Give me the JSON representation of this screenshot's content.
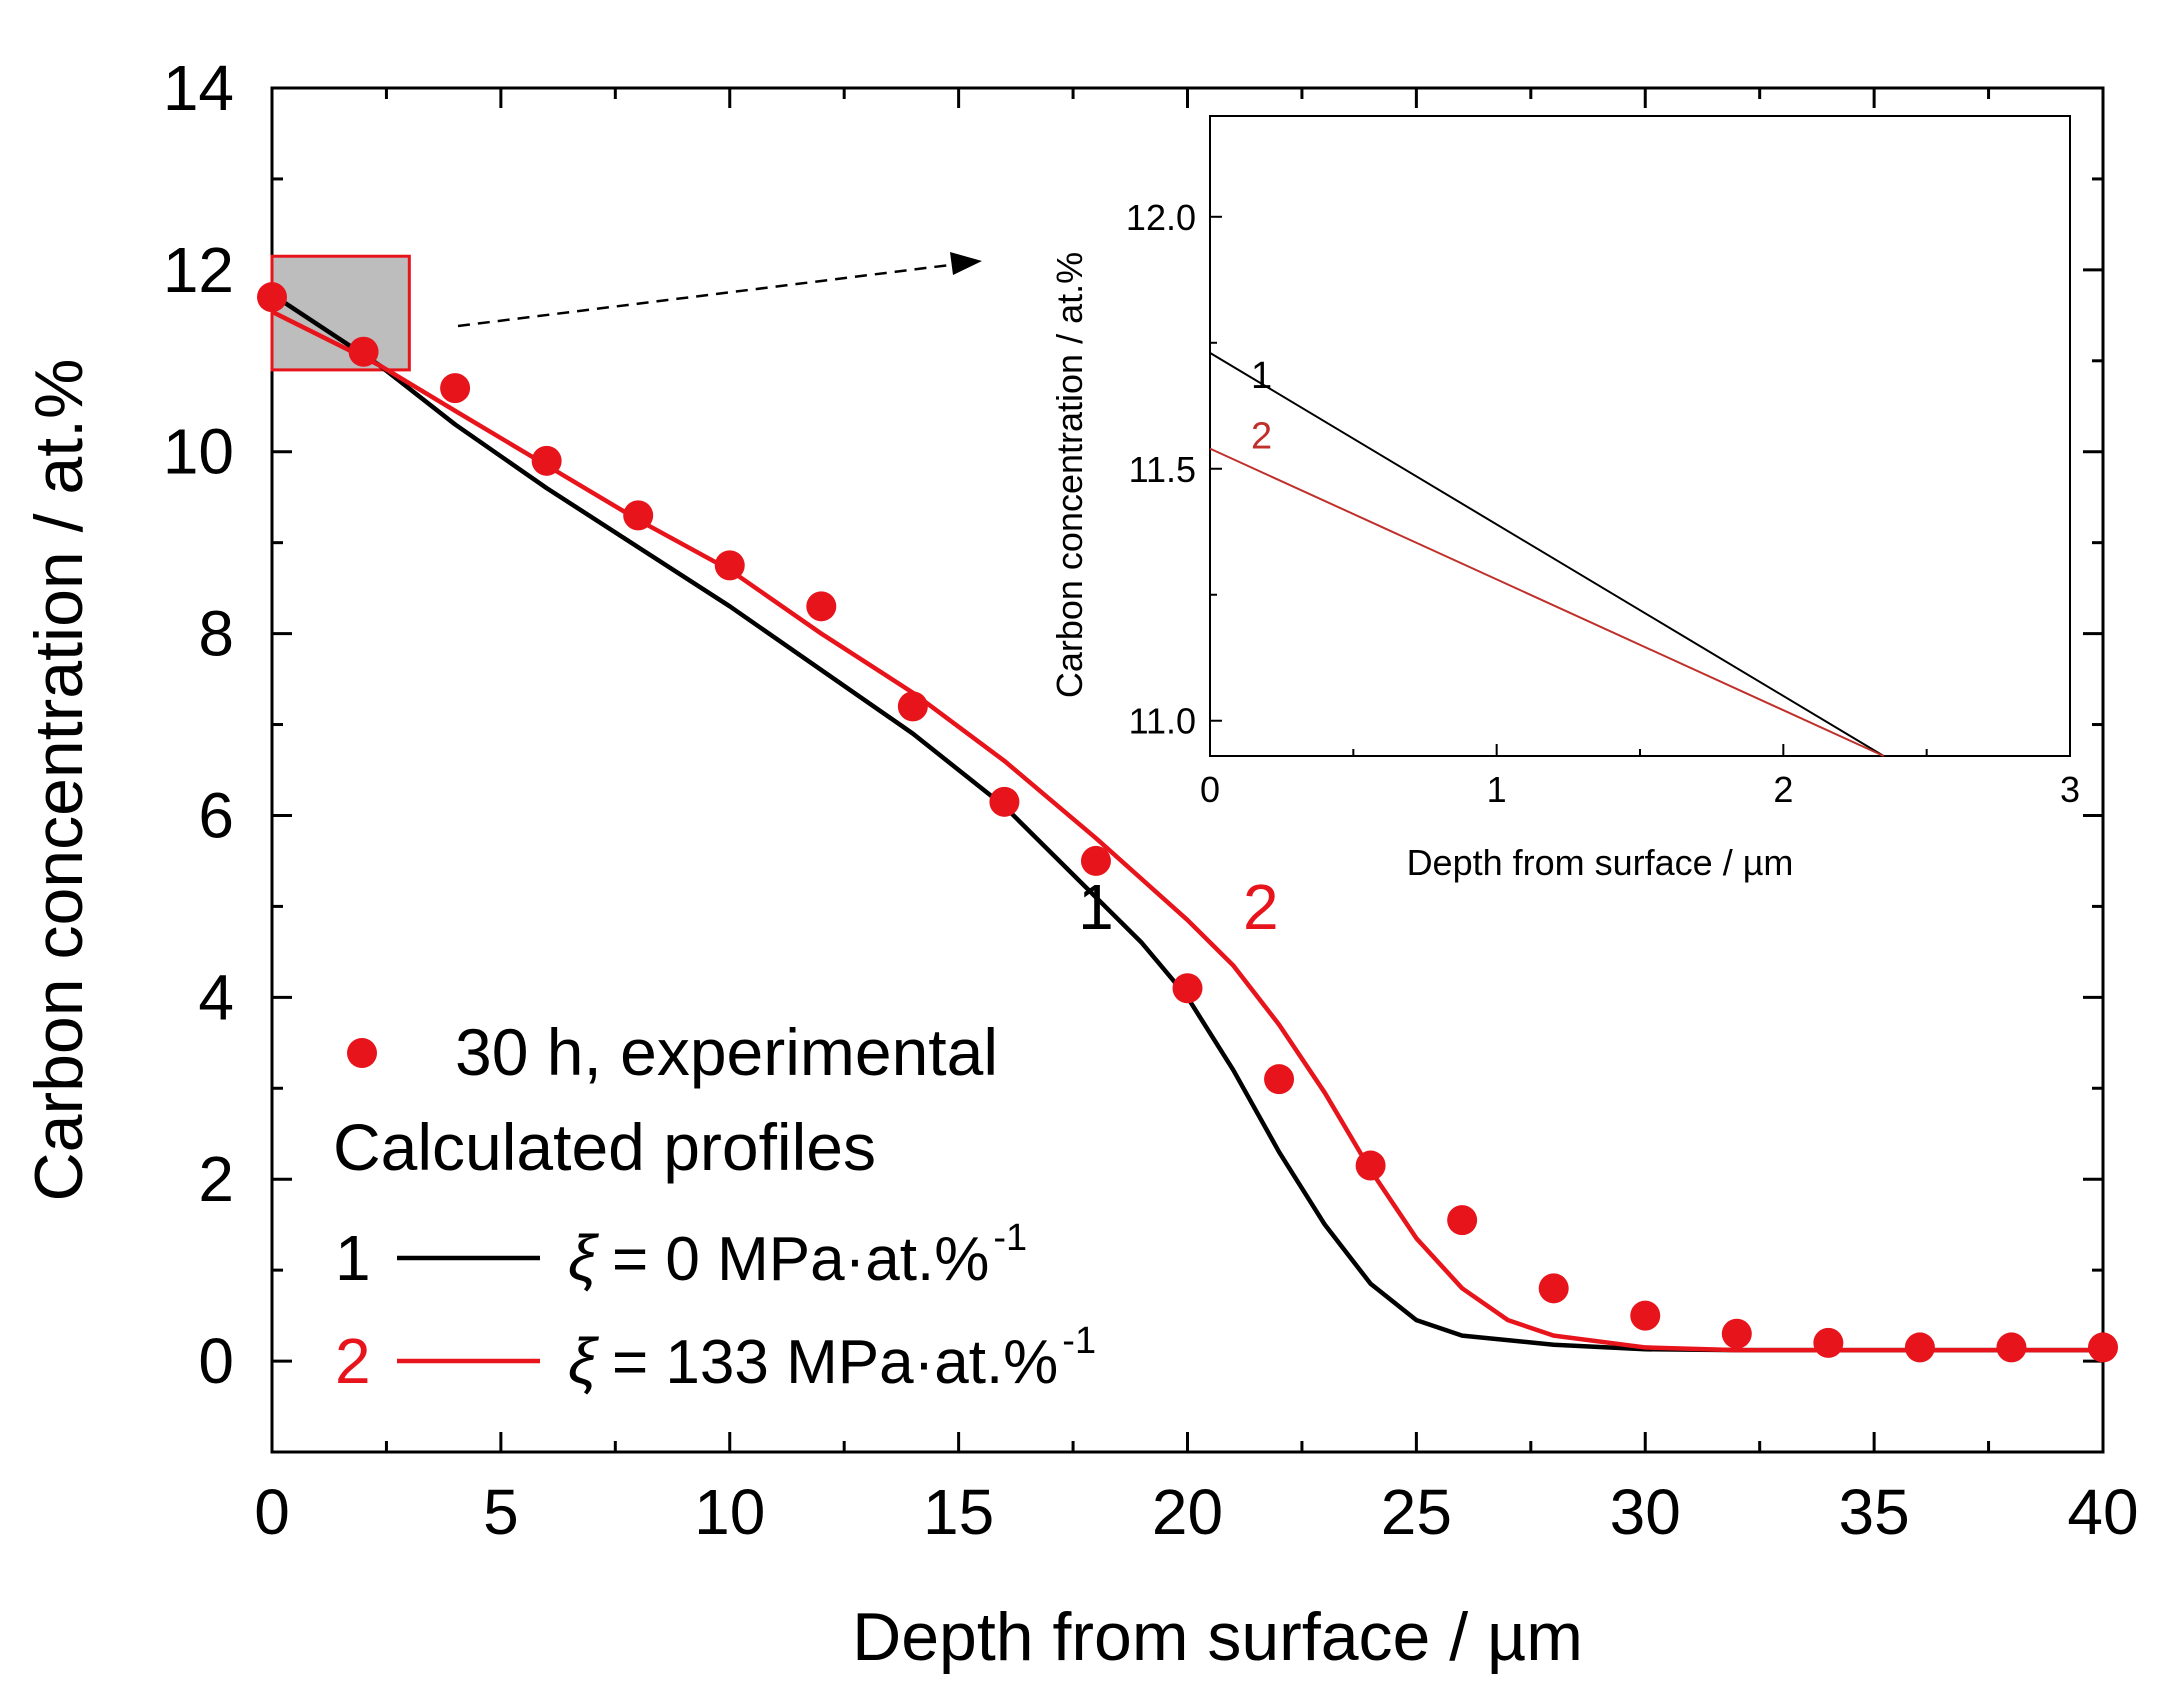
{
  "chart_data": [
    {
      "id": "main",
      "type": "line",
      "title": "",
      "xlabel": "Depth from surface / µm",
      "ylabel": "Carbon concentration / at.%",
      "xlim": [
        0,
        40
      ],
      "ylim": [
        -1,
        14
      ],
      "xticks": [
        0,
        5,
        10,
        15,
        20,
        25,
        30,
        35,
        40
      ],
      "yticks": [
        0,
        2,
        4,
        6,
        8,
        10,
        12,
        14
      ],
      "grid": false,
      "series": [
        {
          "name": "30 h, experimental",
          "kind": "scatter",
          "color": "#e8141b",
          "points": [
            [
              0,
              11.7
            ],
            [
              2,
              11.1
            ],
            [
              4,
              10.7
            ],
            [
              6,
              9.9
            ],
            [
              8,
              9.3
            ],
            [
              10,
              8.75
            ],
            [
              12,
              8.3
            ],
            [
              14,
              7.2
            ],
            [
              16,
              6.15
            ],
            [
              18,
              5.5
            ],
            [
              20,
              4.1
            ],
            [
              22,
              3.1
            ],
            [
              24,
              2.15
            ],
            [
              26,
              1.55
            ],
            [
              28,
              0.8
            ],
            [
              30,
              0.5
            ],
            [
              32,
              0.3
            ],
            [
              34,
              0.2
            ],
            [
              36,
              0.15
            ],
            [
              38,
              0.15
            ],
            [
              40,
              0.15
            ]
          ]
        },
        {
          "name": "1",
          "kind": "line",
          "color": "#000000",
          "points": [
            [
              0,
              11.73
            ],
            [
              2.35,
              10.95
            ],
            [
              4,
              10.3
            ],
            [
              6,
              9.6
            ],
            [
              8,
              8.95
            ],
            [
              10,
              8.3
            ],
            [
              12,
              7.6
            ],
            [
              14,
              6.9
            ],
            [
              16,
              6.1
            ],
            [
              18,
              5.1
            ],
            [
              19,
              4.6
            ],
            [
              20,
              4.0
            ],
            [
              21,
              3.2
            ],
            [
              22,
              2.3
            ],
            [
              23,
              1.5
            ],
            [
              24,
              0.85
            ],
            [
              25,
              0.45
            ],
            [
              26,
              0.28
            ],
            [
              28,
              0.18
            ],
            [
              30,
              0.13
            ],
            [
              32,
              0.12
            ],
            [
              40,
              0.12
            ]
          ]
        },
        {
          "name": "2",
          "kind": "line",
          "color": "#e8141b",
          "points": [
            [
              0,
              11.54
            ],
            [
              2.35,
              10.95
            ],
            [
              4,
              10.45
            ],
            [
              6,
              9.85
            ],
            [
              8,
              9.25
            ],
            [
              10,
              8.7
            ],
            [
              12,
              8.0
            ],
            [
              14,
              7.35
            ],
            [
              16,
              6.6
            ],
            [
              18,
              5.75
            ],
            [
              20,
              4.85
            ],
            [
              21,
              4.35
            ],
            [
              22,
              3.7
            ],
            [
              23,
              2.95
            ],
            [
              24,
              2.1
            ],
            [
              25,
              1.35
            ],
            [
              26,
              0.8
            ],
            [
              27,
              0.45
            ],
            [
              28,
              0.28
            ],
            [
              30,
              0.15
            ],
            [
              32,
              0.12
            ],
            [
              40,
              0.12
            ]
          ]
        }
      ],
      "curve_labels": [
        {
          "text": "1",
          "x": 18,
          "y": 4.75,
          "color": "#000000"
        },
        {
          "text": "2",
          "x": 21.6,
          "y": 4.75,
          "color": "#e8141b"
        }
      ],
      "zoom_box": {
        "xrange": [
          0,
          3
        ],
        "yrange": [
          10.9,
          12.15
        ]
      },
      "legend": {
        "placement": "bottom-left",
        "experimental": "30 h, experimental",
        "heading": "Calculated profiles",
        "entries": [
          {
            "num": "1",
            "xi": "ξ",
            "text": "= 0 MPa·at.%",
            "sup": "-1",
            "color": "#000000",
            "num_color": "#000000"
          },
          {
            "num": "2",
            "xi": "ξ",
            "text": "= 133 MPa·at.%",
            "sup": "-1",
            "color": "#e8141b",
            "num_color": "#e8141b"
          }
        ]
      }
    },
    {
      "id": "inset",
      "type": "line",
      "title": "",
      "xlabel": "Depth from surface / µm",
      "ylabel": "Carbon concentration / at.%",
      "xlim": [
        0,
        3
      ],
      "ylim": [
        10.93,
        12.2
      ],
      "xticks": [
        0,
        1,
        2,
        3
      ],
      "yticks": [
        11.0,
        11.5,
        12.0
      ],
      "ytick_labels": [
        "11.0",
        "11.5",
        "12.0"
      ],
      "grid": false,
      "series": [
        {
          "name": "1",
          "kind": "line",
          "color": "#000000",
          "points": [
            [
              0,
              11.73
            ],
            [
              2.35,
              10.93
            ]
          ]
        },
        {
          "name": "2",
          "kind": "line",
          "color": "#c0302a",
          "points": [
            [
              0,
              11.54
            ],
            [
              2.35,
              10.93
            ]
          ]
        }
      ],
      "curve_labels": [
        {
          "text": "1",
          "x": 0.18,
          "y": 11.66,
          "color": "#000000"
        },
        {
          "text": "2",
          "x": 0.18,
          "y": 11.54,
          "color": "#c0302a"
        }
      ]
    }
  ]
}
